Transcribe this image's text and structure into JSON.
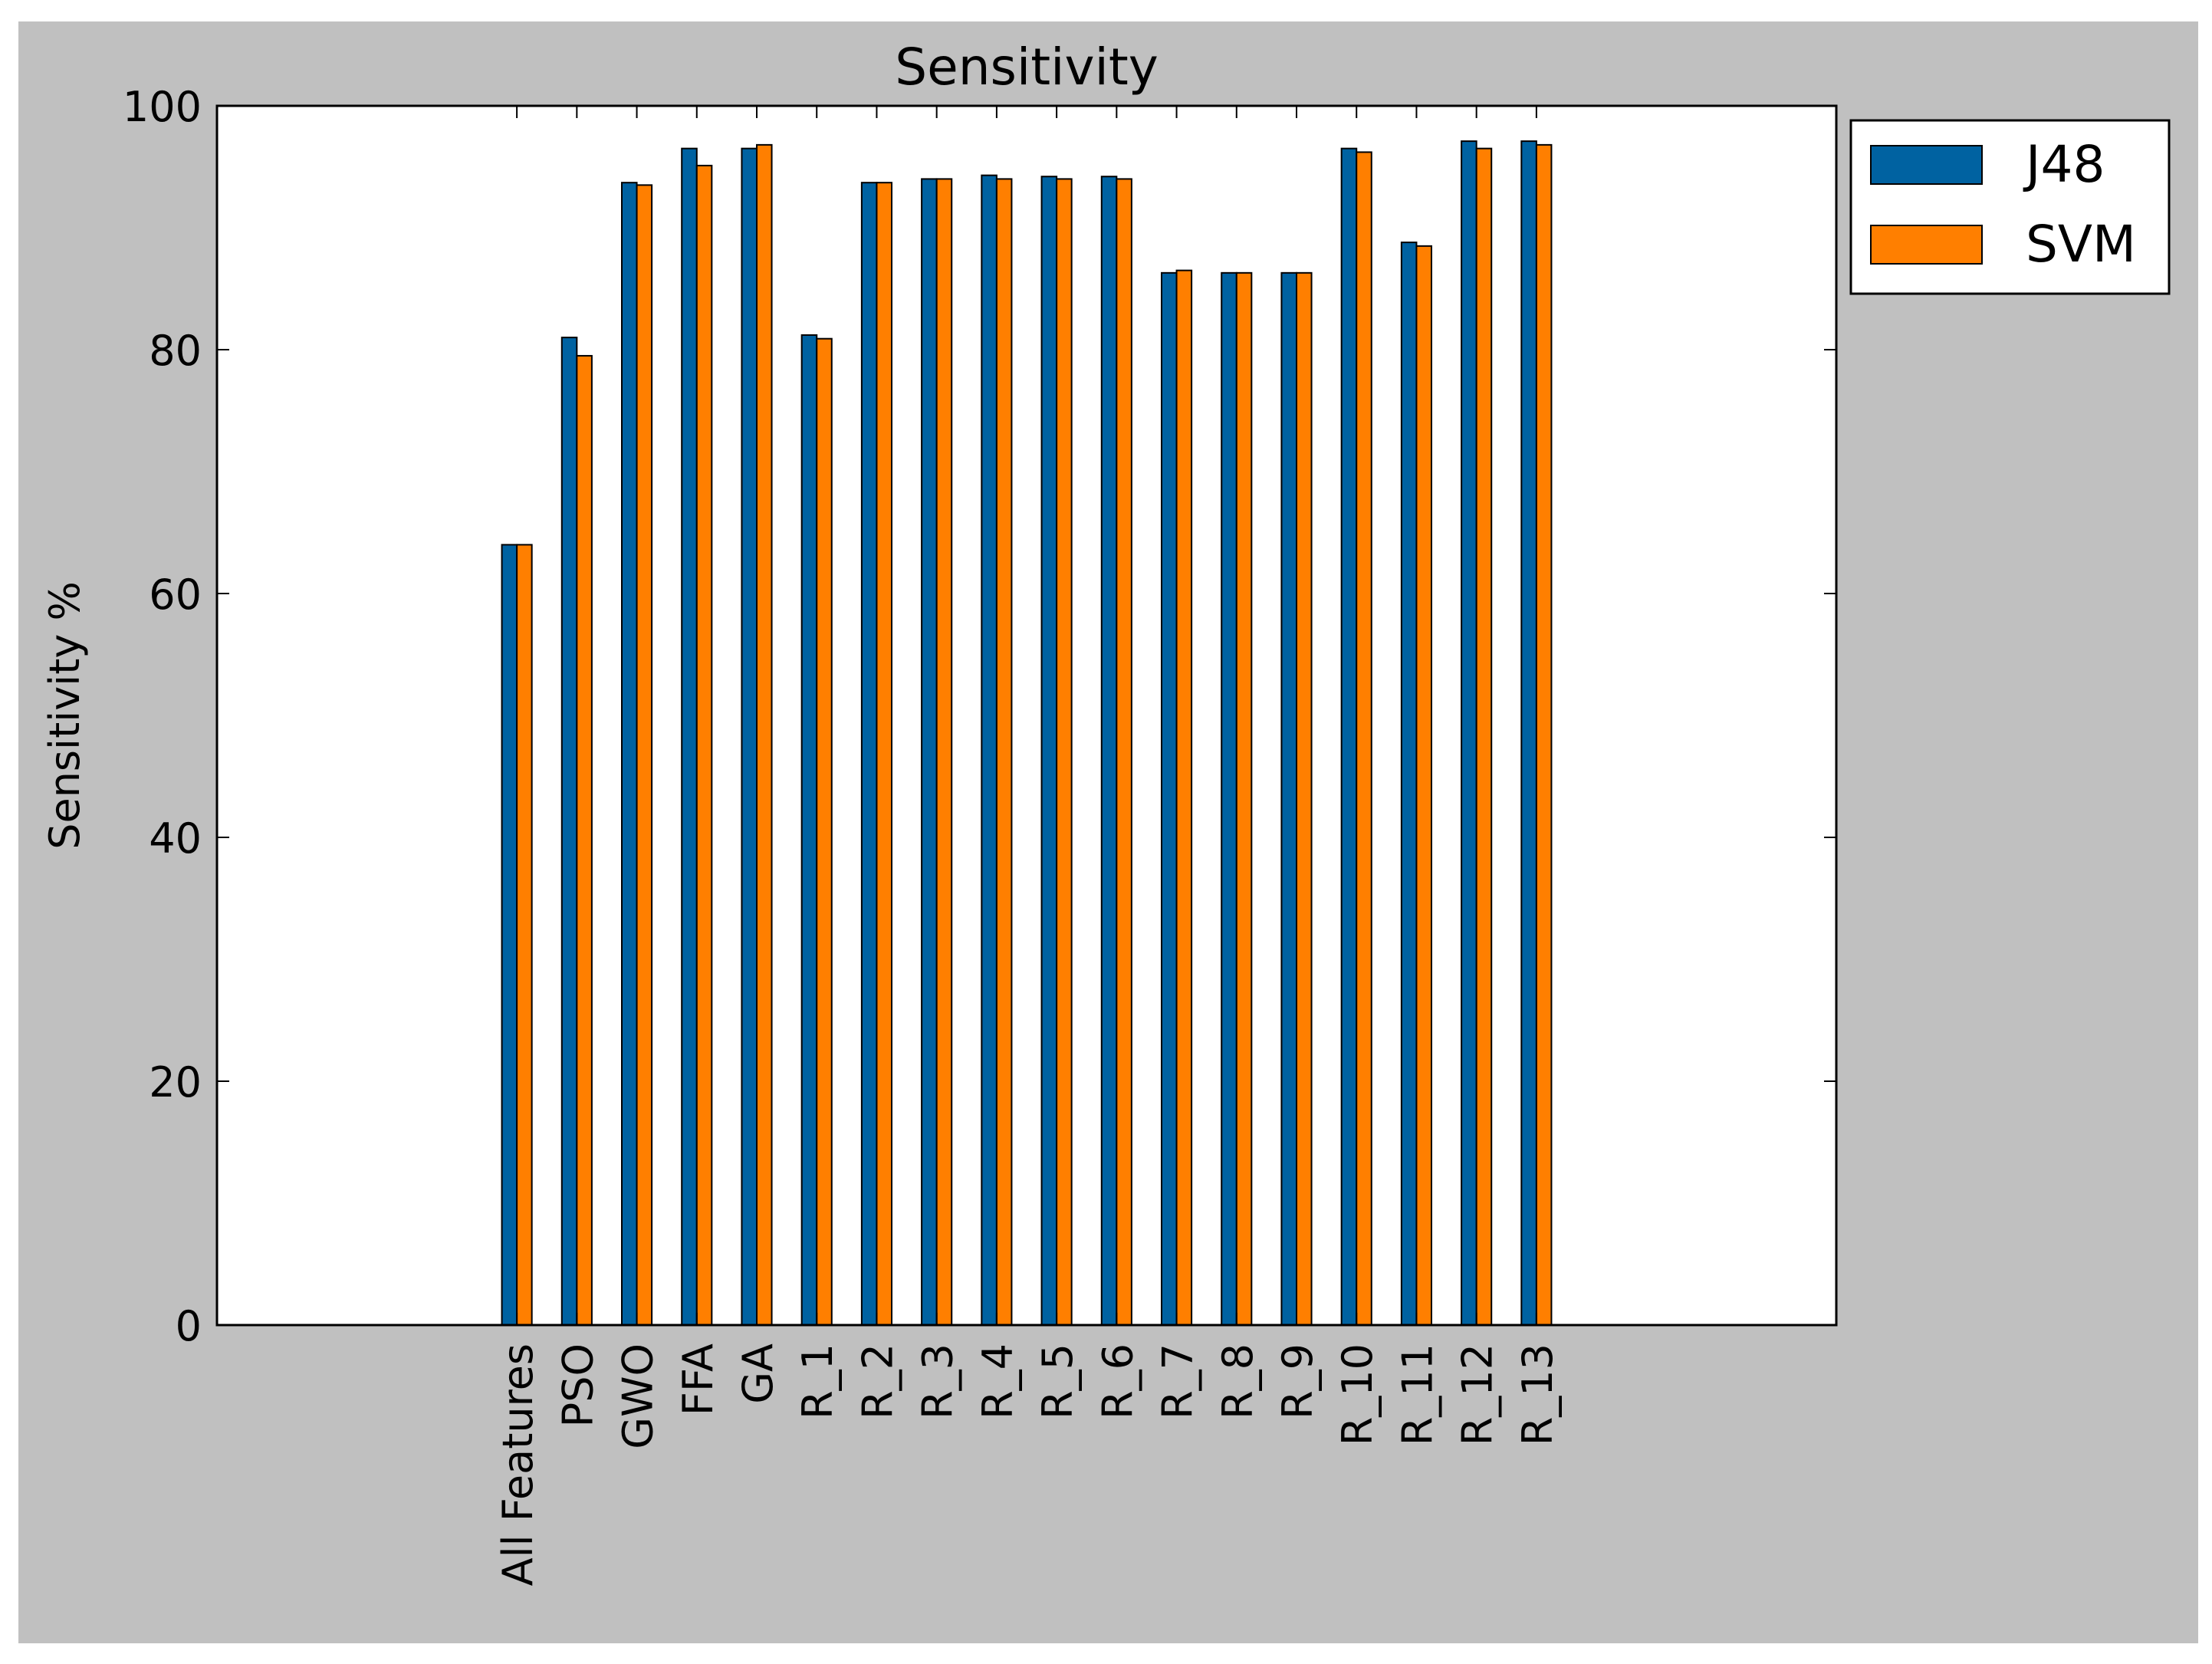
{
  "chart_data": {
    "type": "bar",
    "title": "Sensitivity",
    "xlabel": "",
    "ylabel": "Sensitivity %",
    "ylim": [
      0,
      100
    ],
    "yticks": [
      0,
      20,
      40,
      60,
      80,
      100
    ],
    "xlim": [
      -5,
      22
    ],
    "grid": false,
    "legend_position": "outside top-right",
    "background_color": "#c0c0c0",
    "plot_background_color": "#ffffff",
    "categories": [
      "All Features",
      "PSO",
      "GWO",
      "FFA",
      "GA",
      "R_1",
      "R_2",
      "R_3",
      "R_4",
      "R_5",
      "R_6",
      "R_7",
      "R_8",
      "R_9",
      "R_10",
      "R_11",
      "R_12",
      "R_13"
    ],
    "series": [
      {
        "name": "J48",
        "color": "#0062a1",
        "values": [
          64.0,
          81.0,
          93.7,
          96.5,
          96.5,
          81.2,
          93.7,
          94.0,
          94.3,
          94.2,
          94.2,
          86.3,
          86.3,
          86.3,
          96.5,
          88.8,
          97.1,
          97.1
        ]
      },
      {
        "name": "SVM",
        "color": "#ff7f00",
        "values": [
          64.0,
          79.5,
          93.5,
          95.1,
          96.8,
          80.9,
          93.7,
          94.0,
          94.0,
          94.0,
          94.0,
          86.5,
          86.3,
          86.3,
          96.2,
          88.5,
          96.5,
          96.8
        ]
      }
    ]
  }
}
